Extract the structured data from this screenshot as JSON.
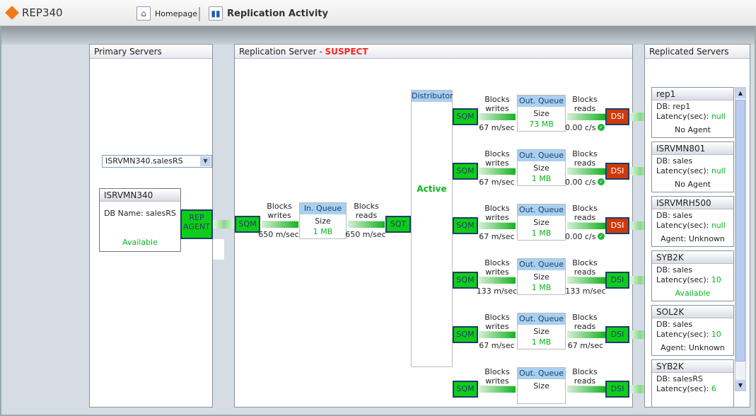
{
  "app": {
    "title": "REP340"
  },
  "nav": {
    "home": "Homepage",
    "current": "Replication Activity"
  },
  "primary": {
    "title": "Primary Servers",
    "select_value": "ISRVMN340.salesRS",
    "server": {
      "name": "ISRVMN340",
      "db": "DB Name: salesRS",
      "status": "Available"
    },
    "agent_line1": "REP",
    "agent_line2": "AGENT"
  },
  "replication": {
    "title": "Replication Server - ",
    "state": "SUSPECT",
    "sqm": "SQM",
    "sqt": "SQT",
    "writes_l1": "Blocks",
    "writes_l2": "writes",
    "reads_l1": "Blocks",
    "reads_l2": "reads",
    "in_queue": {
      "title": "In. Queue",
      "size_label": "Size",
      "size": "1 MB",
      "write_rate": "650 m/sec",
      "read_rate": "650 m/sec"
    },
    "distributor": {
      "title": "Distributor",
      "status": "Active"
    },
    "rows": [
      {
        "write_rate": "67 m/sec",
        "size": "73 MB",
        "read_rate": "0.00 c/s",
        "ok": true,
        "dsi_status": "error"
      },
      {
        "write_rate": "67 m/sec",
        "size": "1 MB",
        "read_rate": "0.00 c/s",
        "ok": true,
        "dsi_status": "error"
      },
      {
        "write_rate": "67 m/sec",
        "size": "1 MB",
        "read_rate": "0.00 c/s",
        "ok": true,
        "dsi_status": "error"
      },
      {
        "write_rate": "133 m/sec",
        "size": "1 MB",
        "read_rate": "133 m/sec",
        "ok": false,
        "dsi_status": "ok"
      },
      {
        "write_rate": "67 m/sec",
        "size": "1 MB",
        "read_rate": "67 m/sec",
        "ok": false,
        "dsi_status": "ok"
      },
      {
        "write_rate": "",
        "size": "",
        "read_rate": "",
        "ok": false,
        "dsi_status": "ok"
      }
    ],
    "out_queue_title": "Out. Queue",
    "dsi": "DSI"
  },
  "replicated": {
    "title": "Replicated Servers",
    "latency_label": "Latency(sec): ",
    "servers": [
      {
        "name": "rep1",
        "db": "DB: rep1",
        "latency": "null",
        "agent": "No Agent",
        "agent_green": false
      },
      {
        "name": "ISRVMN801",
        "db": "DB: sales",
        "latency": "null",
        "agent": "No Agent",
        "agent_green": false
      },
      {
        "name": "ISRVMRH500",
        "db": "DB: sales",
        "latency": "null",
        "agent": "Agent: Unknown",
        "agent_green": false
      },
      {
        "name": "SYB2K",
        "db": "DB: sales",
        "latency": "10",
        "agent": "Available",
        "agent_green": true
      },
      {
        "name": "SOL2K",
        "db": "DB: sales",
        "latency": "10",
        "agent": "Agent: Unknown",
        "agent_green": false
      },
      {
        "name": "SYB2K",
        "db": "DB: salesRS",
        "latency": "6",
        "agent": "",
        "agent_green": false
      }
    ]
  },
  "colors": {
    "green": "#10cc1a",
    "error": "#cf3a0c",
    "header_blue": "#a9d0f0"
  }
}
